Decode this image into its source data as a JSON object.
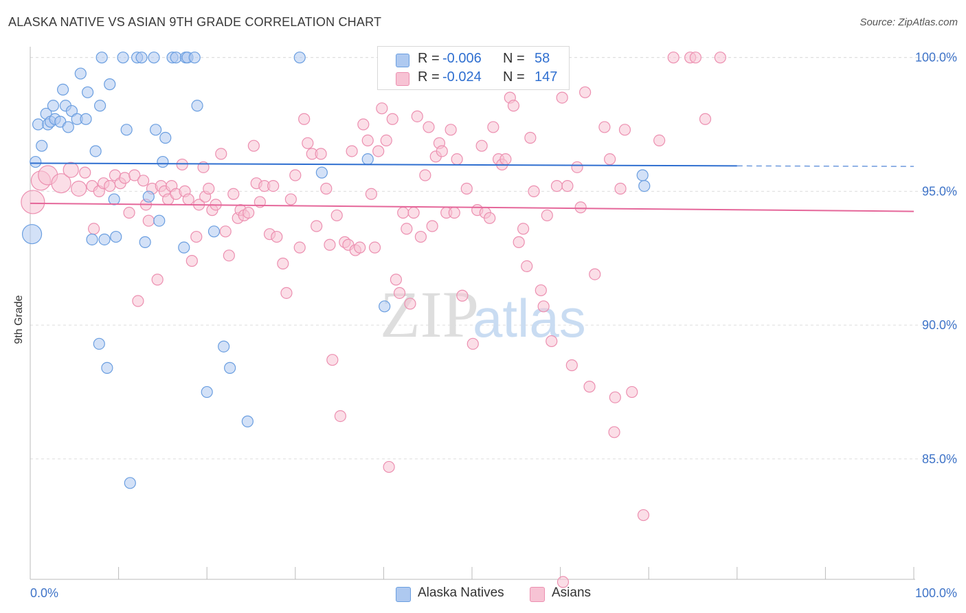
{
  "header": {
    "title": "ALASKA NATIVE VS ASIAN 9TH GRADE CORRELATION CHART",
    "source": "Source: ZipAtlas.com"
  },
  "legend_top": {
    "rows": [
      {
        "r_label": "R =",
        "r_value": "-0.006",
        "n_label": "N =",
        "n_value": "58"
      },
      {
        "r_label": "R =",
        "r_value": "-0.024",
        "n_label": "N =",
        "n_value": "147"
      }
    ]
  },
  "legend_bottom": {
    "items": [
      "Alaska Natives",
      "Asians"
    ]
  },
  "watermark": {
    "zip": "ZIP",
    "atlas": "atlas"
  },
  "colors": {
    "blue_fill": "#aec9f0",
    "blue_stroke": "#6a9ee0",
    "blue_line": "#2f6fd0",
    "pink_fill": "#f7c3d4",
    "pink_stroke": "#ec8fb0",
    "pink_line": "#e5679a",
    "tick_label": "#3f74c8",
    "grid": "#dddddd"
  },
  "chart_data": {
    "type": "scatter",
    "title": "ALASKA NATIVE VS ASIAN 9TH GRADE CORRELATION CHART",
    "xlabel": "",
    "ylabel": "9th Grade",
    "xlim": [
      0,
      100
    ],
    "ylim": [
      80.5,
      100.3
    ],
    "x_tick_labels": [
      "0.0%",
      "100.0%"
    ],
    "y_ticks": [
      85,
      90,
      95,
      100
    ],
    "y_tick_labels": [
      "85.0%",
      "90.0%",
      "95.0%",
      "100.0%"
    ],
    "grid": true,
    "legend_position": "top-center",
    "series": [
      {
        "name": "Alaska Natives",
        "color": "blue",
        "R": -0.006,
        "N": 58,
        "trend": {
          "x": [
            0,
            80
          ],
          "y": [
            96.05,
            95.95
          ],
          "dashed_to": [
            100,
            95.93
          ]
        },
        "points": [
          [
            0.2,
            93.4,
            "L"
          ],
          [
            0.6,
            96.1
          ],
          [
            0.9,
            97.5
          ],
          [
            1.3,
            96.7
          ],
          [
            1.8,
            97.9
          ],
          [
            2.0,
            97.5
          ],
          [
            2.3,
            97.6
          ],
          [
            2.6,
            98.2
          ],
          [
            2.8,
            97.7
          ],
          [
            3.4,
            97.6
          ],
          [
            3.7,
            98.8
          ],
          [
            4.0,
            98.2
          ],
          [
            4.3,
            97.4
          ],
          [
            4.7,
            98.0
          ],
          [
            5.3,
            97.7
          ],
          [
            5.7,
            99.4
          ],
          [
            6.3,
            97.7
          ],
          [
            6.5,
            98.7
          ],
          [
            7.0,
            93.2
          ],
          [
            7.4,
            96.5
          ],
          [
            7.8,
            89.3
          ],
          [
            7.9,
            98.2
          ],
          [
            8.1,
            100.0
          ],
          [
            8.4,
            93.2
          ],
          [
            8.7,
            88.4
          ],
          [
            9.0,
            99.0
          ],
          [
            9.5,
            94.7
          ],
          [
            9.7,
            93.3
          ],
          [
            10.5,
            100.0
          ],
          [
            10.9,
            97.3
          ],
          [
            11.3,
            84.1
          ],
          [
            12.1,
            100.0
          ],
          [
            12.6,
            100.0
          ],
          [
            13.0,
            93.1
          ],
          [
            13.4,
            94.8
          ],
          [
            14.0,
            100.0
          ],
          [
            14.2,
            97.3
          ],
          [
            14.6,
            93.9
          ],
          [
            15.0,
            96.1
          ],
          [
            15.3,
            97.0
          ],
          [
            16.1,
            100.0
          ],
          [
            16.5,
            100.0
          ],
          [
            17.4,
            92.9
          ],
          [
            17.6,
            100.0
          ],
          [
            17.8,
            100.0
          ],
          [
            18.6,
            100.0
          ],
          [
            18.9,
            98.2
          ],
          [
            20.0,
            87.5
          ],
          [
            20.8,
            93.5
          ],
          [
            21.9,
            89.2
          ],
          [
            22.6,
            88.4
          ],
          [
            24.6,
            86.4
          ],
          [
            30.5,
            100.0
          ],
          [
            33.0,
            95.7
          ],
          [
            38.2,
            96.2
          ],
          [
            40.1,
            90.7
          ],
          [
            69.3,
            95.6
          ],
          [
            69.5,
            95.2
          ]
        ]
      },
      {
        "name": "Asians",
        "color": "pink",
        "R": -0.024,
        "N": 147,
        "trend": {
          "x": [
            0,
            100
          ],
          "y": [
            94.55,
            94.25
          ]
        },
        "points": [
          [
            0.3,
            94.6,
            "XL"
          ],
          [
            1.2,
            95.4,
            "L"
          ],
          [
            2.0,
            95.6,
            "L"
          ],
          [
            3.5,
            95.3,
            "L"
          ],
          [
            4.6,
            95.8,
            "M"
          ],
          [
            5.5,
            95.1,
            "M"
          ],
          [
            6.2,
            95.7
          ],
          [
            7.0,
            95.2
          ],
          [
            7.2,
            93.6
          ],
          [
            7.8,
            95.0
          ],
          [
            8.3,
            95.3
          ],
          [
            9.0,
            95.2
          ],
          [
            9.6,
            95.6
          ],
          [
            10.2,
            95.3
          ],
          [
            10.7,
            95.5
          ],
          [
            11.2,
            94.2
          ],
          [
            11.8,
            95.6
          ],
          [
            12.2,
            90.9
          ],
          [
            12.8,
            95.4
          ],
          [
            13.1,
            94.5
          ],
          [
            13.4,
            93.9
          ],
          [
            13.8,
            95.1
          ],
          [
            14.4,
            91.7
          ],
          [
            14.8,
            95.2
          ],
          [
            15.2,
            95.0
          ],
          [
            15.6,
            94.7
          ],
          [
            16.0,
            95.2
          ],
          [
            16.5,
            94.9
          ],
          [
            17.2,
            96.0
          ],
          [
            17.5,
            95.0
          ],
          [
            17.9,
            94.7
          ],
          [
            18.3,
            92.4
          ],
          [
            18.8,
            93.3
          ],
          [
            19.1,
            94.5
          ],
          [
            19.6,
            95.9
          ],
          [
            19.8,
            94.8
          ],
          [
            20.2,
            95.1
          ],
          [
            20.6,
            94.3
          ],
          [
            21.0,
            94.5
          ],
          [
            21.6,
            96.4
          ],
          [
            22.1,
            93.5
          ],
          [
            22.5,
            92.6
          ],
          [
            23.0,
            94.9
          ],
          [
            23.5,
            94.0
          ],
          [
            23.8,
            94.3
          ],
          [
            24.2,
            94.1
          ],
          [
            24.7,
            94.2
          ],
          [
            25.3,
            96.7
          ],
          [
            25.6,
            95.3
          ],
          [
            26.0,
            94.6
          ],
          [
            26.5,
            95.2
          ],
          [
            27.1,
            93.4
          ],
          [
            27.5,
            95.2
          ],
          [
            27.9,
            93.3
          ],
          [
            28.6,
            92.3
          ],
          [
            29.0,
            91.2
          ],
          [
            29.5,
            94.7
          ],
          [
            30.0,
            95.6
          ],
          [
            30.5,
            92.9
          ],
          [
            31.0,
            97.7
          ],
          [
            31.4,
            96.8
          ],
          [
            31.9,
            96.4
          ],
          [
            32.4,
            93.7
          ],
          [
            32.9,
            96.4
          ],
          [
            33.5,
            95.1
          ],
          [
            33.9,
            93.0
          ],
          [
            34.2,
            88.7
          ],
          [
            34.7,
            94.1
          ],
          [
            35.1,
            86.6
          ],
          [
            35.6,
            93.1
          ],
          [
            36.0,
            93.0
          ],
          [
            36.4,
            96.5
          ],
          [
            36.8,
            92.8
          ],
          [
            37.3,
            92.9
          ],
          [
            37.7,
            97.5
          ],
          [
            38.2,
            96.9
          ],
          [
            38.6,
            94.9
          ],
          [
            39.0,
            92.9
          ],
          [
            39.4,
            96.5
          ],
          [
            39.8,
            98.1
          ],
          [
            40.3,
            96.9
          ],
          [
            40.6,
            84.7
          ],
          [
            41.0,
            97.7
          ],
          [
            41.4,
            91.7
          ],
          [
            41.8,
            91.2
          ],
          [
            42.2,
            94.2
          ],
          [
            42.6,
            93.6
          ],
          [
            43.0,
            90.8
          ],
          [
            43.4,
            94.2
          ],
          [
            43.8,
            97.8
          ],
          [
            44.2,
            93.3
          ],
          [
            44.7,
            95.6
          ],
          [
            45.1,
            97.4
          ],
          [
            45.5,
            93.7
          ],
          [
            45.9,
            96.3
          ],
          [
            46.3,
            96.8
          ],
          [
            46.6,
            96.5
          ],
          [
            47.1,
            94.2
          ],
          [
            47.6,
            97.3
          ],
          [
            48.0,
            94.2
          ],
          [
            48.3,
            96.2
          ],
          [
            48.9,
            91.1
          ],
          [
            49.4,
            95.1
          ],
          [
            50.1,
            89.3
          ],
          [
            50.6,
            94.3
          ],
          [
            51.1,
            96.7
          ],
          [
            51.5,
            94.2
          ],
          [
            52.0,
            94.0
          ],
          [
            52.4,
            97.4
          ],
          [
            53.0,
            96.2
          ],
          [
            53.4,
            96.0
          ],
          [
            53.8,
            96.2
          ],
          [
            54.3,
            98.5
          ],
          [
            54.7,
            98.2
          ],
          [
            55.3,
            93.1
          ],
          [
            55.8,
            93.6
          ],
          [
            56.2,
            92.2
          ],
          [
            56.6,
            97.0
          ],
          [
            57.0,
            95.0
          ],
          [
            57.8,
            91.3
          ],
          [
            58.1,
            90.7
          ],
          [
            58.5,
            94.1
          ],
          [
            59.0,
            89.4
          ],
          [
            59.6,
            95.2
          ],
          [
            60.2,
            98.5
          ],
          [
            60.8,
            95.2
          ],
          [
            61.3,
            88.5
          ],
          [
            61.9,
            95.9
          ],
          [
            62.3,
            94.4
          ],
          [
            62.8,
            98.7
          ],
          [
            63.3,
            87.7
          ],
          [
            63.9,
            91.9
          ],
          [
            65.0,
            97.4
          ],
          [
            65.6,
            96.2
          ],
          [
            66.2,
            87.3
          ],
          [
            66.8,
            95.1
          ],
          [
            67.3,
            97.3
          ],
          [
            68.1,
            87.5
          ],
          [
            69.4,
            82.9
          ],
          [
            71.2,
            96.9
          ],
          [
            72.8,
            100.0
          ],
          [
            74.7,
            100.0
          ],
          [
            75.3,
            100.0
          ],
          [
            76.4,
            97.7
          ],
          [
            78.1,
            100.0
          ],
          [
            60.3,
            80.4
          ],
          [
            66.1,
            86.0
          ]
        ]
      }
    ]
  }
}
